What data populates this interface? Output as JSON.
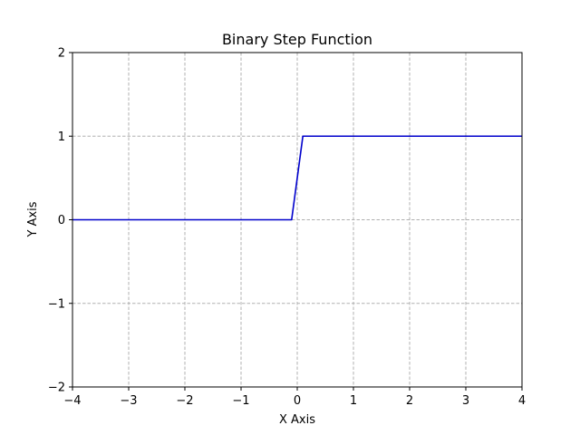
{
  "chart_data": {
    "type": "line",
    "title": "Binary Step Function",
    "xlabel": "X Axis",
    "ylabel": "Y Axis",
    "xlim": [
      -4,
      4
    ],
    "ylim": [
      -2,
      2
    ],
    "xticks": [
      -4,
      -3,
      -2,
      -1,
      0,
      1,
      2,
      3,
      4
    ],
    "xtick_labels": [
      "−4",
      "−3",
      "−2",
      "−1",
      "0",
      "1",
      "2",
      "3",
      "4"
    ],
    "yticks": [
      -2,
      -1,
      0,
      1,
      2
    ],
    "ytick_labels": [
      "−2",
      "−1",
      "0",
      "1",
      "2"
    ],
    "grid": true,
    "legend": "none",
    "series": [
      {
        "color": "#0000cc",
        "x": [
          -4,
          -0.1,
          0.1,
          4
        ],
        "y": [
          0,
          0,
          1,
          1
        ]
      }
    ]
  },
  "colors": {
    "grid": "#b0b0b0",
    "axes": "#000000",
    "background": "#ffffff"
  }
}
